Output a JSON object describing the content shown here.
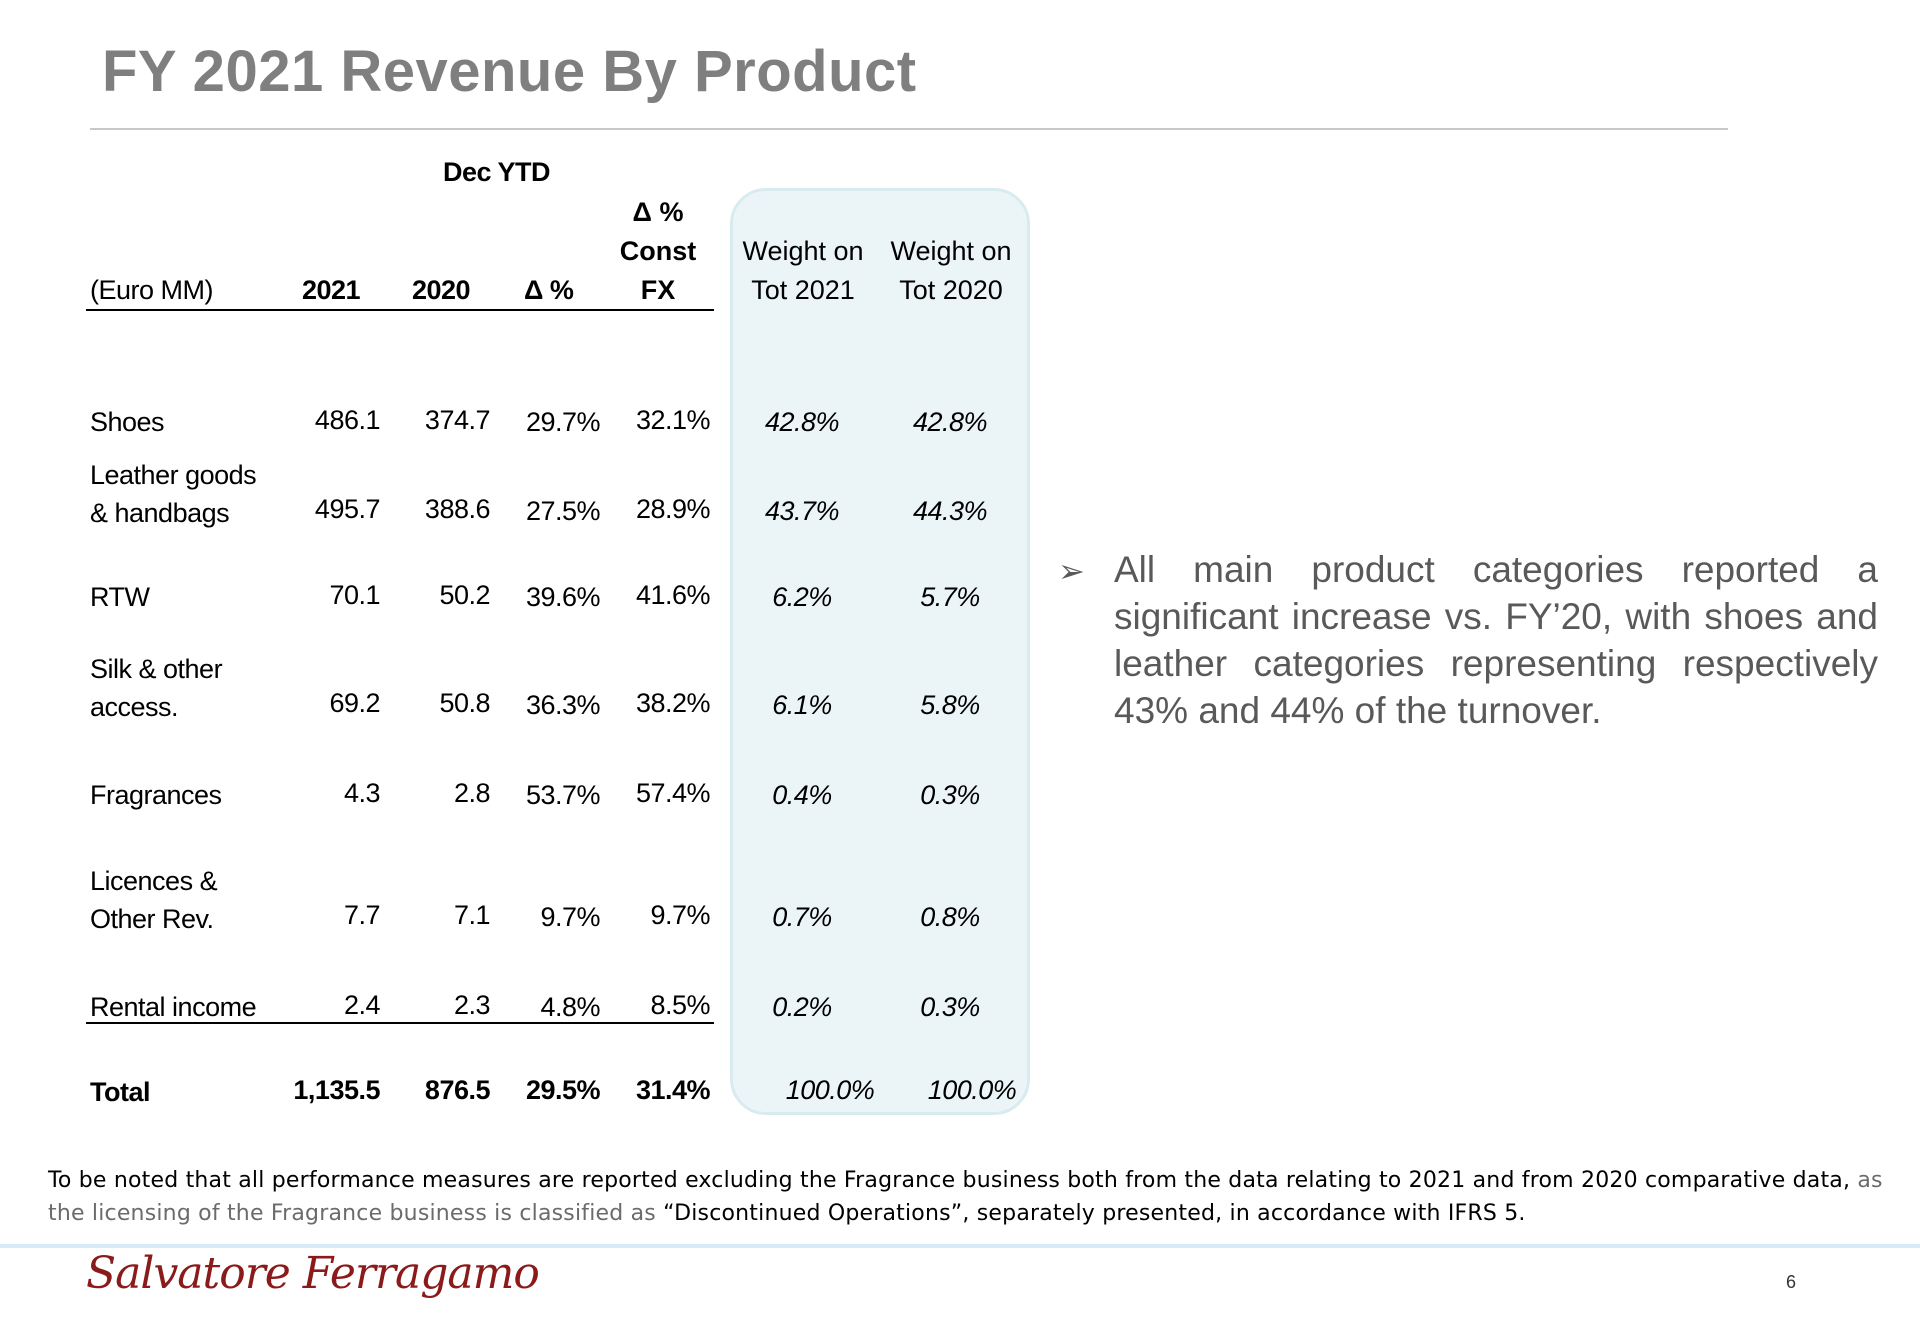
{
  "title": "FY 2021 Revenue By Product",
  "table": {
    "group_header": "Dec YTD",
    "unit_label": "(Euro MM)",
    "col_2021": "2021",
    "col_2020": "2020",
    "col_delta": "Δ %",
    "col_constfx_line1": "Δ %",
    "col_constfx_line2": "Const",
    "col_constfx_line3": "FX",
    "col_w2021_line1": "Weight on",
    "col_w2021_line2": "Tot 2021",
    "col_w2020_line1": "Weight on",
    "col_w2020_line2": "Tot 2020",
    "rows": [
      {
        "label1": "Shoes",
        "label2": "",
        "v2021": "486.1",
        "v2020": "374.7",
        "delta": "29.7%",
        "constfx": "32.1%",
        "w2021": "42.8%",
        "w2020": "42.8%"
      },
      {
        "label1": "Leather goods",
        "label2": "& handbags",
        "v2021": "495.7",
        "v2020": "388.6",
        "delta": "27.5%",
        "constfx": "28.9%",
        "w2021": "43.7%",
        "w2020": "44.3%"
      },
      {
        "label1": "RTW",
        "label2": "",
        "v2021": "70.1",
        "v2020": "50.2",
        "delta": "39.6%",
        "constfx": "41.6%",
        "w2021": "6.2%",
        "w2020": "5.7%"
      },
      {
        "label1": "Silk & other",
        "label2": "access.",
        "v2021": "69.2",
        "v2020": "50.8",
        "delta": "36.3%",
        "constfx": "38.2%",
        "w2021": "6.1%",
        "w2020": "5.8%"
      },
      {
        "label1": "Fragrances",
        "label2": "",
        "v2021": "4.3",
        "v2020": "2.8",
        "delta": "53.7%",
        "constfx": "57.4%",
        "w2021": "0.4%",
        "w2020": "0.3%"
      },
      {
        "label1": "Licences &",
        "label2": "Other Rev.",
        "v2021": "7.7",
        "v2020": "7.1",
        "delta": "9.7%",
        "constfx": "9.7%",
        "w2021": "0.7%",
        "w2020": "0.8%"
      },
      {
        "label1": "Rental income",
        "label2": "",
        "v2021": "2.4",
        "v2020": "2.3",
        "delta": "4.8%",
        "constfx": "8.5%",
        "w2021": "0.2%",
        "w2020": "0.3%"
      }
    ],
    "total": {
      "label": "Total",
      "v2021": "1,135.5",
      "v2020": "876.5",
      "delta": "29.5%",
      "constfx": "31.4%",
      "w2021": "100.0%",
      "w2020": "100.0%"
    }
  },
  "bullet": {
    "arrow": "➢",
    "text": "All main product categories reported a significant increase vs. FY’20, with shoes and leather categories representing respectively 43% and 44% of the turnover."
  },
  "note": {
    "part1": "To be noted that all performance measures are reported excluding the Fragrance business both from the data relating to 2021 and from 2020 comparative data,",
    "part2": " as the licensing of the Fragrance business is classified as",
    "part3": "  “Discontinued Operations”, separately presented,  in accordance with IFRS 5."
  },
  "logo_text": "Salvatore Ferragamo",
  "page_number": "6"
}
